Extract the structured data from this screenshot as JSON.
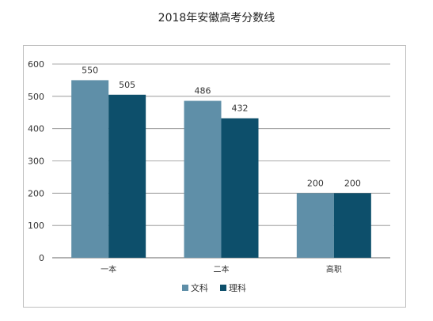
{
  "chart_data": {
    "type": "bar",
    "title": "2018年安徽高考分数线",
    "categories": [
      "一本",
      "二本",
      "高职"
    ],
    "series": [
      {
        "name": "文科",
        "values": [
          550,
          486,
          200
        ],
        "color": "#5f8fa8"
      },
      {
        "name": "理科",
        "values": [
          505,
          432,
          200
        ],
        "color": "#0d4f6b"
      }
    ],
    "y_ticks": [
      0,
      100,
      200,
      300,
      400,
      500,
      600
    ],
    "ylim": [
      0,
      600
    ],
    "xlabel": "",
    "ylabel": "",
    "grid": true,
    "legend": "bottom"
  }
}
